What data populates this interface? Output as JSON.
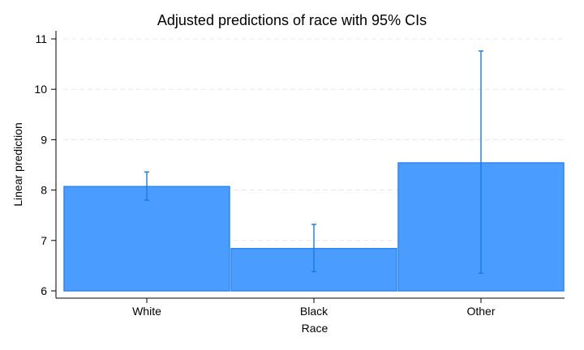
{
  "chart_data": {
    "type": "bar",
    "title": "Adjusted predictions of race with 95% CIs",
    "xlabel": "Race",
    "ylabel": "Linear prediction",
    "categories": [
      "White",
      "Black",
      "Other"
    ],
    "values": [
      8.07,
      6.84,
      8.54
    ],
    "ci_lower": [
      7.8,
      6.38,
      6.35
    ],
    "ci_upper": [
      8.36,
      7.32,
      10.76
    ],
    "base": 6,
    "ylim": [
      5.8,
      11.2
    ],
    "yticks": [
      6,
      7,
      8,
      9,
      10,
      11
    ],
    "grid": true,
    "colors": {
      "bar_fill": "#4a9cff",
      "bar_stroke": "#2e86f0",
      "error_bar": "#1a7ae0"
    }
  }
}
